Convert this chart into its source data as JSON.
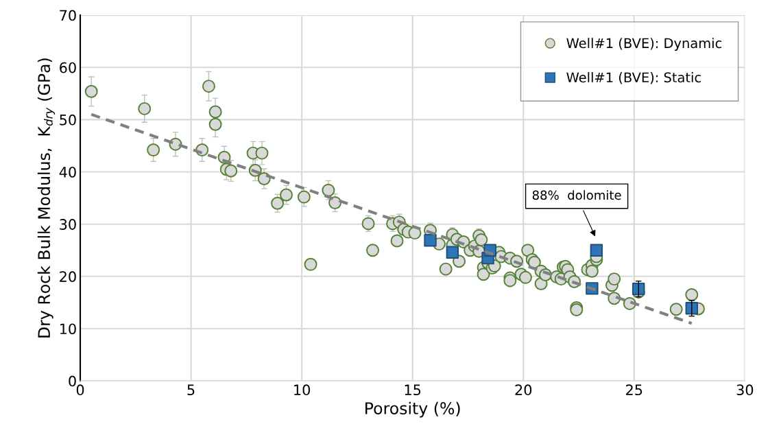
{
  "chart_data": {
    "type": "scatter",
    "xlabel": "Porosity (%)",
    "ylabel": "Dry Rock Bulk Modulus,  K$_{dry}$ (GPa)",
    "xlim": [
      0,
      30
    ],
    "xticks": [
      0,
      5,
      10,
      15,
      20,
      25,
      30
    ],
    "ylim": [
      0,
      70
    ],
    "yticks": [
      0,
      10,
      20,
      30,
      40,
      50,
      60,
      70
    ],
    "grid": true,
    "legend": "top right",
    "series": [
      {
        "name": "Well#1 (BVE): Dynamic",
        "marker": "circle",
        "color": "#d9d9d9",
        "x": [
          0.5,
          2.9,
          3.3,
          4.3,
          5.5,
          5.8,
          6.1,
          6.1,
          6.5,
          6.6,
          6.8,
          7.8,
          8.2,
          7.9,
          8.3,
          8.9,
          9.3,
          10.1,
          10.4,
          11.2,
          11.5,
          13.0,
          13.2,
          14.1,
          14.3,
          14.4,
          14.6,
          14.8,
          15.1,
          15.8,
          16.2,
          16.5,
          16.8,
          16.8,
          17.0,
          17.1,
          17.3,
          17.6,
          17.8,
          18.0,
          18.1,
          18.0,
          18.2,
          18.2,
          18.4,
          18.6,
          18.7,
          18.9,
          19.0,
          19.4,
          19.4,
          19.4,
          19.7,
          19.9,
          20.1,
          20.2,
          20.4,
          20.5,
          20.8,
          20.8,
          21.0,
          21.5,
          21.7,
          21.8,
          21.9,
          22.0,
          22.1,
          22.3,
          22.4,
          22.4,
          22.9,
          23.1,
          23.1,
          23.3,
          23.3,
          24.0,
          24.1,
          24.1,
          24.8,
          25.2,
          26.9,
          27.6,
          27.9
        ],
        "values": [
          55.4,
          52.1,
          44.2,
          45.3,
          44.2,
          56.4,
          51.5,
          49.1,
          42.8,
          40.5,
          40.2,
          43.6,
          43.6,
          40.3,
          38.7,
          34.0,
          35.6,
          35.2,
          22.3,
          36.5,
          34.1,
          30.1,
          25.0,
          30.1,
          26.8,
          30.4,
          29.0,
          28.5,
          28.3,
          28.8,
          26.2,
          21.4,
          28.0,
          26.0,
          27.1,
          22.9,
          26.6,
          25.0,
          25.8,
          27.8,
          27.0,
          24.8,
          21.7,
          20.4,
          22.6,
          21.6,
          22.0,
          24.6,
          23.8,
          23.5,
          19.7,
          19.2,
          22.9,
          20.4,
          19.8,
          25.0,
          23.2,
          22.7,
          21.0,
          18.6,
          20.3,
          19.9,
          19.5,
          21.8,
          21.9,
          21.3,
          19.9,
          19.0,
          14.0,
          13.6,
          21.3,
          22.1,
          21.0,
          23.2,
          23.8,
          18.3,
          19.5,
          15.8,
          14.8,
          17.0,
          13.7,
          16.5,
          13.8
        ],
        "errors": [
          2.8,
          2.6,
          2.2,
          2.3,
          2.2,
          2.8,
          2.6,
          2.4,
          2.1,
          2.0,
          2.0,
          2.2,
          2.2,
          2.0,
          1.9,
          1.7,
          1.8,
          1.8,
          0.6,
          1.8,
          1.7,
          1.5,
          1.0,
          1.5,
          1.0,
          1.5,
          1.0,
          1.0,
          1.0,
          1.4,
          1.0,
          null,
          1.3,
          1.0,
          1.0,
          null,
          1.0,
          null,
          1.0,
          1.3,
          1.0,
          1.0,
          null,
          null,
          null,
          null,
          null,
          1.0,
          null,
          null,
          null,
          null,
          null,
          null,
          null,
          null,
          null,
          null,
          null,
          null,
          null,
          null,
          null,
          null,
          null,
          null,
          null,
          null,
          null,
          null,
          null,
          null,
          null,
          null,
          null,
          null,
          null,
          null,
          null,
          null,
          null,
          null,
          null
        ]
      },
      {
        "name": "Well#1 (BVE): Static",
        "marker": "square",
        "color": "#2e75b6",
        "x": [
          15.8,
          16.8,
          18.4,
          18.5,
          23.1,
          23.3,
          25.2,
          27.6
        ],
        "values": [
          26.9,
          24.6,
          23.5,
          25.0,
          17.7,
          25.0,
          17.6,
          13.9
        ],
        "errors": [
          null,
          null,
          null,
          null,
          null,
          null,
          1.5,
          1.5
        ]
      },
      {
        "type": "line",
        "line_style": "dashed",
        "color": "#808080",
        "x": [
          0.5,
          27.6
        ],
        "values": [
          51.0,
          11.0
        ]
      }
    ],
    "annotations": [
      "88%  dolomite"
    ]
  }
}
